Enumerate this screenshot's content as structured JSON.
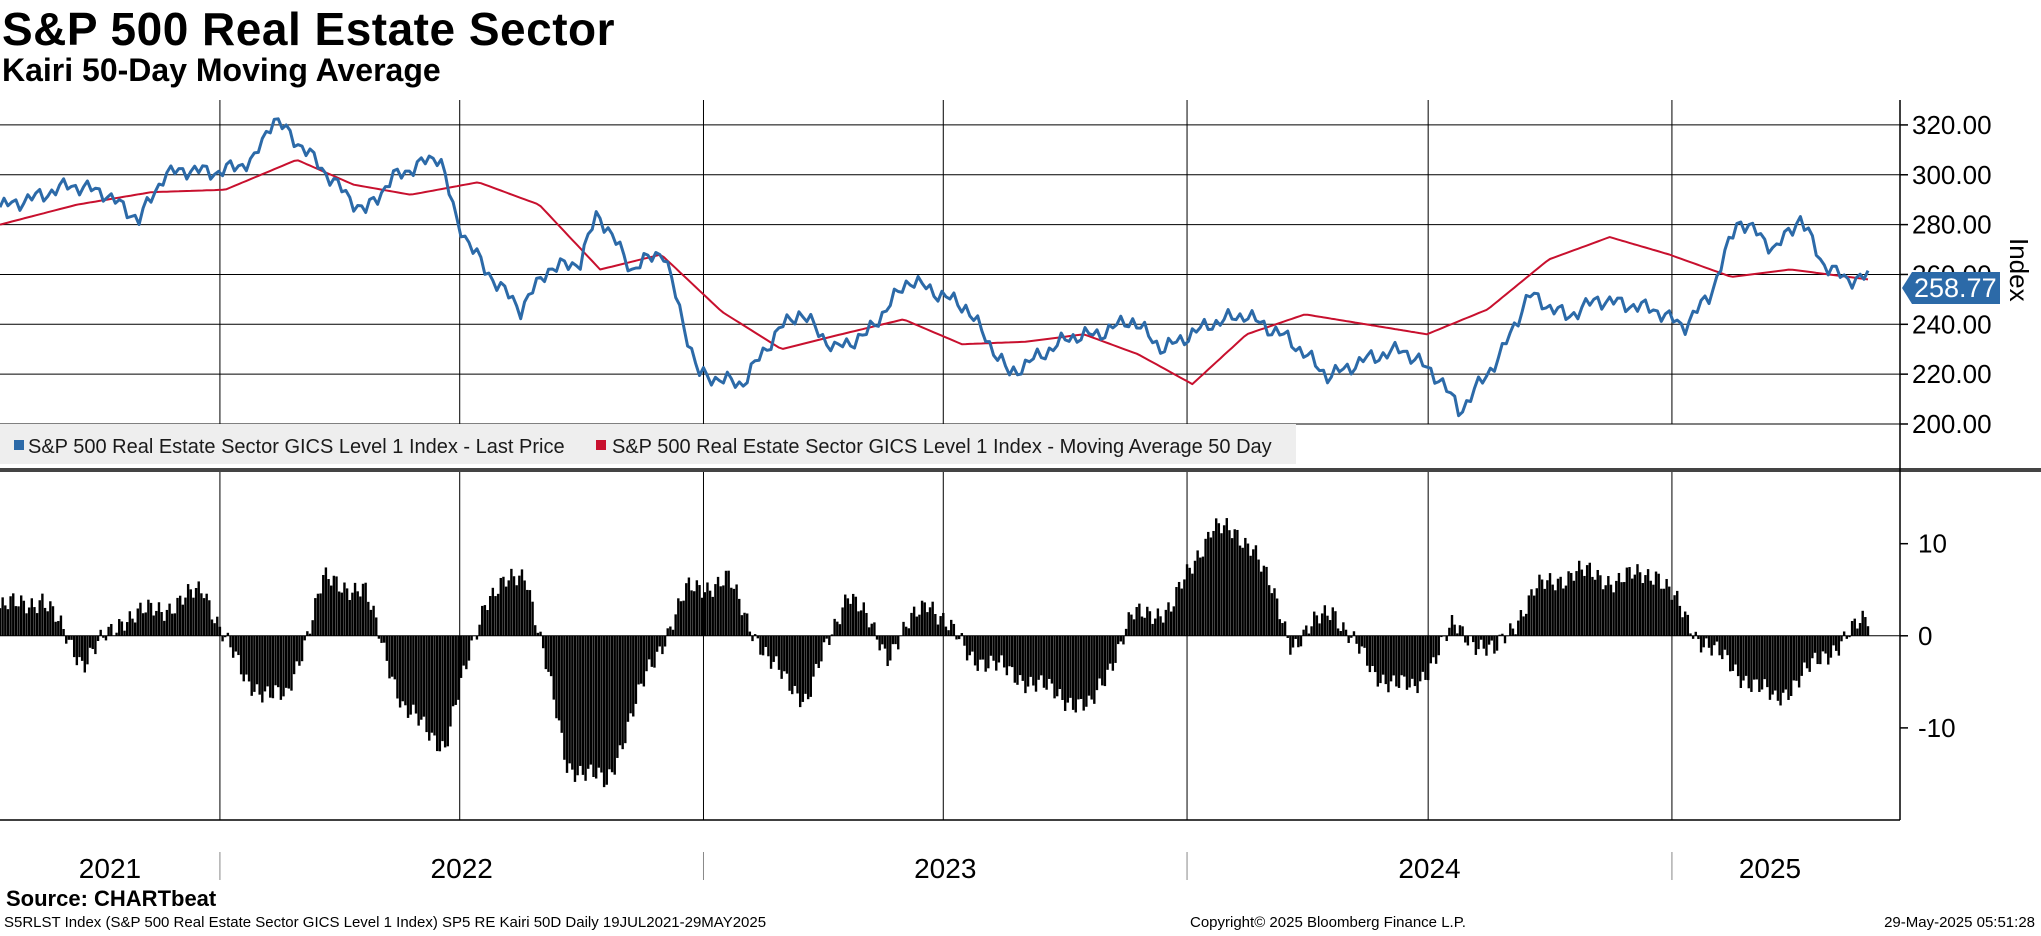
{
  "header": {
    "title": "S&P 500 Real Estate Sector",
    "subtitle": "Kairi 50-Day Moving Average"
  },
  "footer": {
    "source": "Source: CHARTbeat",
    "ticker_line": "S5RLST Index (S&P 500 Real Estate Sector GICS Level 1 Index) SP5 RE Kairi 50D  Daily 19JUL2021-29MAY2025",
    "copyright": "Copyright© 2025 Bloomberg Finance L.P.",
    "timestamp": "29-May-2025 05:51:28"
  },
  "colors": {
    "last_price": "#2c6aa8",
    "moving_average": "#c8102e",
    "histogram": "#000000",
    "last_value_badge": "#2c6aa8"
  },
  "chart_data": [
    {
      "type": "line",
      "panel": "top",
      "ylabel": "Index",
      "ylim": [
        200,
        330
      ],
      "yticks": [
        "320.00",
        "300.00",
        "280.00",
        "260.00",
        "240.00",
        "220.00",
        "200.00"
      ],
      "x_range": [
        "2021-07-19",
        "2025-05-29"
      ],
      "x_tick_labels": [
        "2021",
        "2022",
        "2023",
        "2024",
        "2025"
      ],
      "last_value": "258.77",
      "legend": [
        "S&P 500 Real Estate Sector GICS Level 1 Index - Last Price",
        "S&P 500 Real Estate Sector GICS Level 1 Index - Moving Average 50 Day"
      ],
      "series": [
        {
          "name": "S&P 500 Real Estate Sector GICS Level 1 Index - Last Price",
          "x": [
            "2021-07-19",
            "2021-08-15",
            "2021-09-10",
            "2021-10-05",
            "2021-11-01",
            "2021-11-20",
            "2021-12-06",
            "2021-12-31",
            "2022-01-27",
            "2022-02-10",
            "2022-03-10",
            "2022-03-30",
            "2022-04-20",
            "2022-05-12",
            "2022-06-16",
            "2022-06-28",
            "2022-07-20",
            "2022-08-16",
            "2022-09-05",
            "2022-09-30",
            "2022-10-13",
            "2022-11-08",
            "2022-12-01",
            "2022-12-28",
            "2023-01-30",
            "2023-02-27",
            "2023-03-15",
            "2023-04-10",
            "2023-05-04",
            "2023-06-05",
            "2023-07-18",
            "2023-08-20",
            "2023-10-05",
            "2023-10-26",
            "2023-11-20",
            "2023-12-14",
            "2024-01-18",
            "2024-02-13",
            "2024-03-18",
            "2024-04-17",
            "2024-05-15",
            "2024-06-12",
            "2024-07-10",
            "2024-07-25",
            "2024-08-25",
            "2024-09-15",
            "2024-10-14",
            "2024-11-06",
            "2024-11-27",
            "2024-12-19",
            "2025-01-10",
            "2025-01-30",
            "2025-02-20",
            "2025-03-05",
            "2025-03-20",
            "2025-04-08",
            "2025-04-24",
            "2025-05-12",
            "2025-05-29"
          ],
          "values": [
            287,
            291,
            296,
            293,
            282,
            300,
            302,
            301,
            306,
            323,
            308,
            296,
            285,
            299,
            308,
            282,
            262,
            246,
            262,
            265,
            285,
            262,
            270,
            220,
            216,
            238,
            245,
            230,
            236,
            258,
            247,
            220,
            235,
            236,
            242,
            230,
            240,
            244,
            234,
            219,
            226,
            230,
            218,
            205,
            228,
            252,
            243,
            250,
            248,
            246,
            239,
            252,
            282,
            277,
            270,
            283,
            265,
            258,
            259
          ]
        },
        {
          "name": "S&P 500 Real Estate Sector GICS Level 1 Index - Moving Average 50 Day",
          "x": [
            "2021-07-19",
            "2021-09-15",
            "2021-11-10",
            "2022-01-05",
            "2022-02-28",
            "2022-04-12",
            "2022-05-25",
            "2022-07-15",
            "2022-08-30",
            "2022-10-15",
            "2022-11-30",
            "2023-01-15",
            "2023-03-01",
            "2023-04-15",
            "2023-06-01",
            "2023-07-15",
            "2023-09-01",
            "2023-10-15",
            "2023-11-25",
            "2024-01-05",
            "2024-02-15",
            "2024-03-30",
            "2024-05-15",
            "2024-06-30",
            "2024-08-15",
            "2024-09-30",
            "2024-11-15",
            "2024-12-30",
            "2025-02-15",
            "2025-03-31",
            "2025-05-29"
          ],
          "values": [
            280,
            288,
            293,
            294,
            306,
            296,
            292,
            297,
            288,
            262,
            268,
            245,
            230,
            236,
            242,
            232,
            233,
            236,
            228,
            216,
            236,
            244,
            240,
            236,
            246,
            266,
            275,
            268,
            259,
            262,
            258
          ]
        }
      ]
    },
    {
      "type": "bar",
      "panel": "bottom",
      "ylim": [
        -20,
        18
      ],
      "yticks": [
        "10",
        "0",
        "-10"
      ],
      "series": [
        {
          "name": "SP5 RE Kairi 50D",
          "x": [
            "2021-07-19",
            "2021-08-20",
            "2021-09-20",
            "2021-10-20",
            "2021-11-20",
            "2021-12-20",
            "2022-01-20",
            "2022-02-20",
            "2022-03-20",
            "2022-04-20",
            "2022-05-20",
            "2022-06-20",
            "2022-07-20",
            "2022-08-20",
            "2022-09-20",
            "2022-10-20",
            "2022-11-20",
            "2022-12-20",
            "2023-01-20",
            "2023-02-20",
            "2023-03-20",
            "2023-04-20",
            "2023-05-20",
            "2023-06-20",
            "2023-07-20",
            "2023-08-20",
            "2023-09-20",
            "2023-10-20",
            "2023-11-20",
            "2023-12-20",
            "2024-01-20",
            "2024-02-20",
            "2024-03-20",
            "2024-04-20",
            "2024-05-20",
            "2024-06-20",
            "2024-07-20",
            "2024-08-20",
            "2024-09-20",
            "2024-10-20",
            "2024-11-20",
            "2024-12-20",
            "2025-01-20",
            "2025-02-20",
            "2025-03-20",
            "2025-04-20",
            "2025-05-29"
          ],
          "values": [
            3,
            4,
            -3,
            2,
            3,
            5,
            -5,
            -7,
            6,
            5,
            -8,
            -12,
            4,
            7,
            -14,
            -16,
            -4,
            5,
            6,
            -3,
            -7,
            5,
            -2,
            4,
            -2,
            -4,
            -6,
            -8,
            2,
            3,
            12,
            10,
            -1,
            3,
            -4,
            -6,
            1,
            -2,
            5,
            7,
            6,
            7,
            0,
            -4,
            -7,
            -3,
            2
          ]
        }
      ]
    }
  ]
}
